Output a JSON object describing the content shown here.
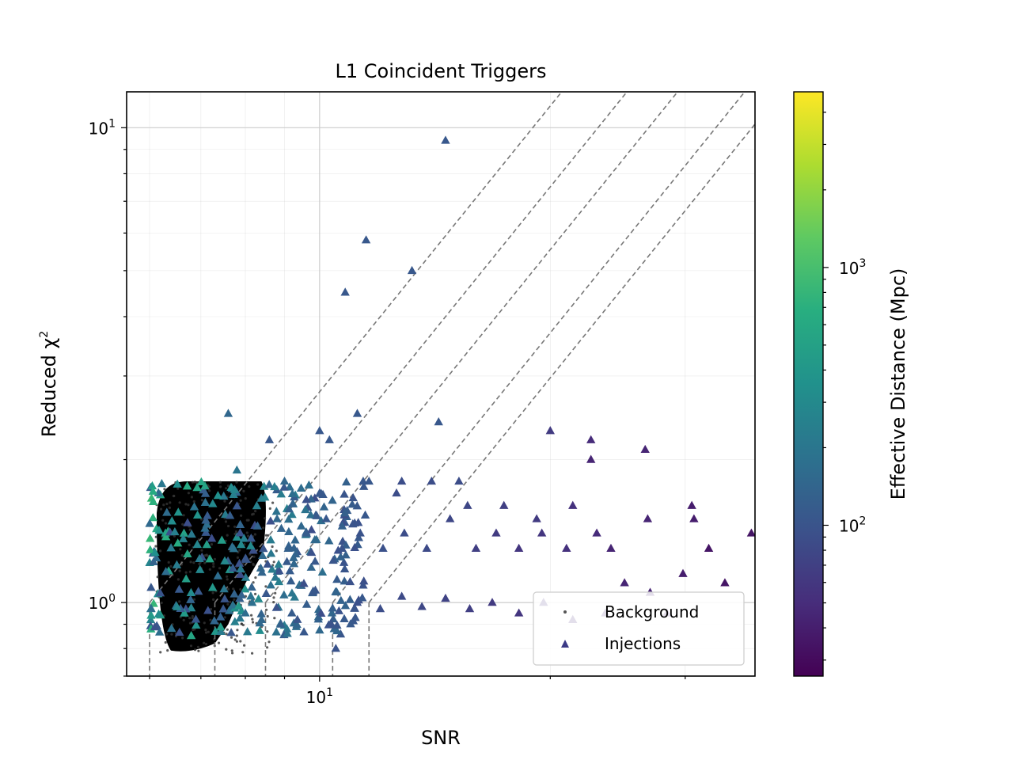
{
  "chart_data": {
    "type": "scatter",
    "title": "L1 Coincident Triggers",
    "xlabel": "SNR",
    "ylabel": "Reduced χ",
    "ylabel_superscript": "2",
    "xscale": "log",
    "yscale": "log",
    "xlim": [
      5.6,
      37
    ],
    "ylim": [
      0.7,
      11.9
    ],
    "x_ticks": [
      {
        "value": 10,
        "base": "10",
        "exp": "1"
      }
    ],
    "y_ticks": [
      {
        "value": 1,
        "base": "10",
        "exp": "0"
      },
      {
        "value": 10,
        "base": "10",
        "exp": "1"
      }
    ],
    "grid": true,
    "legend": {
      "position": "lower-right",
      "entries": [
        {
          "label": "Background",
          "marker": "point",
          "color": "#555555"
        },
        {
          "label": "Injections",
          "marker": "triangle",
          "color": "#3b3a86"
        }
      ]
    },
    "colorbar": {
      "label": "Effective Distance (Mpc)",
      "scale": "log",
      "range": [
        26,
        4800
      ],
      "colormap": "viridis",
      "ticks": [
        {
          "value": 100,
          "base": "10",
          "exp": "2"
        },
        {
          "value": 1000,
          "base": "10",
          "exp": "3"
        }
      ]
    },
    "reference_lines": [
      {
        "snr_threshold": 6.0
      },
      {
        "snr_threshold": 7.3
      },
      {
        "snr_threshold": 8.5
      },
      {
        "snr_threshold": 10.4
      },
      {
        "snr_threshold": 11.6
      }
    ],
    "background_region": {
      "snr_range": [
        6.1,
        8.6
      ],
      "chisq_range": [
        0.78,
        1.8
      ]
    },
    "series": [
      {
        "name": "Injections",
        "columns": [
          "snr",
          "chisq",
          "distance_mpc"
        ],
        "points": [
          [
            14.6,
            9.4,
            110
          ],
          [
            11.5,
            5.8,
            110
          ],
          [
            13.2,
            5.0,
            110
          ],
          [
            10.8,
            4.5,
            110
          ],
          [
            7.6,
            2.5,
            150
          ],
          [
            11.2,
            2.5,
            110
          ],
          [
            14.3,
            2.4,
            110
          ],
          [
            10.0,
            2.3,
            110
          ],
          [
            10.3,
            2.2,
            110
          ],
          [
            8.6,
            2.2,
            110
          ],
          [
            20.0,
            2.3,
            65
          ],
          [
            22.6,
            2.2,
            50
          ],
          [
            26.6,
            2.1,
            45
          ],
          [
            22.6,
            2.0,
            45
          ],
          [
            7.8,
            1.9,
            200
          ],
          [
            9.0,
            1.8,
            150
          ],
          [
            11.4,
            1.8,
            110
          ],
          [
            11.6,
            1.8,
            110
          ],
          [
            12.8,
            1.8,
            90
          ],
          [
            14.0,
            1.8,
            90
          ],
          [
            15.2,
            1.8,
            90
          ],
          [
            10.0,
            1.7,
            110
          ],
          [
            12.6,
            1.7,
            90
          ],
          [
            15.6,
            1.6,
            80
          ],
          [
            17.4,
            1.6,
            70
          ],
          [
            19.2,
            1.5,
            65
          ],
          [
            21.4,
            1.6,
            55
          ],
          [
            30.6,
            1.6,
            40
          ],
          [
            30.8,
            1.5,
            40
          ],
          [
            36.6,
            1.4,
            35
          ],
          [
            32.2,
            1.3,
            35
          ],
          [
            26.8,
            1.5,
            45
          ],
          [
            24.0,
            1.3,
            45
          ],
          [
            23.0,
            1.4,
            50
          ],
          [
            21.0,
            1.3,
            55
          ],
          [
            19.5,
            1.4,
            60
          ],
          [
            18.2,
            1.3,
            60
          ],
          [
            17.0,
            1.4,
            65
          ],
          [
            16.0,
            1.3,
            70
          ],
          [
            14.8,
            1.5,
            80
          ],
          [
            13.8,
            1.3,
            85
          ],
          [
            12.9,
            1.4,
            90
          ],
          [
            12.1,
            1.3,
            95
          ],
          [
            11.3,
            1.4,
            100
          ],
          [
            10.7,
            1.3,
            100
          ],
          [
            10.2,
            1.5,
            110
          ],
          [
            9.6,
            1.4,
            120
          ],
          [
            9.1,
            1.3,
            130
          ],
          [
            8.8,
            1.5,
            150
          ],
          [
            33.8,
            1.1,
            35
          ],
          [
            29.8,
            1.15,
            40
          ],
          [
            27.0,
            1.05,
            45
          ],
          [
            25.0,
            1.1,
            45
          ],
          [
            28.4,
            0.95,
            45
          ],
          [
            23.6,
            0.95,
            50
          ],
          [
            21.4,
            0.92,
            50
          ],
          [
            19.6,
            1.0,
            55
          ],
          [
            18.2,
            0.95,
            60
          ],
          [
            16.8,
            1.0,
            65
          ],
          [
            15.7,
            0.97,
            70
          ],
          [
            14.6,
            1.02,
            75
          ],
          [
            13.6,
            0.98,
            80
          ],
          [
            12.8,
            1.03,
            85
          ],
          [
            12.0,
            0.97,
            90
          ],
          [
            11.2,
            1.0,
            95
          ],
          [
            10.6,
            0.96,
            100
          ],
          [
            9.8,
            1.05,
            110
          ],
          [
            9.2,
            0.95,
            120
          ],
          [
            8.9,
            0.9,
            130
          ],
          [
            8.4,
            0.92,
            150
          ],
          [
            8.0,
            0.95,
            170
          ],
          [
            10.5,
            0.8,
            100
          ]
        ]
      }
    ]
  }
}
